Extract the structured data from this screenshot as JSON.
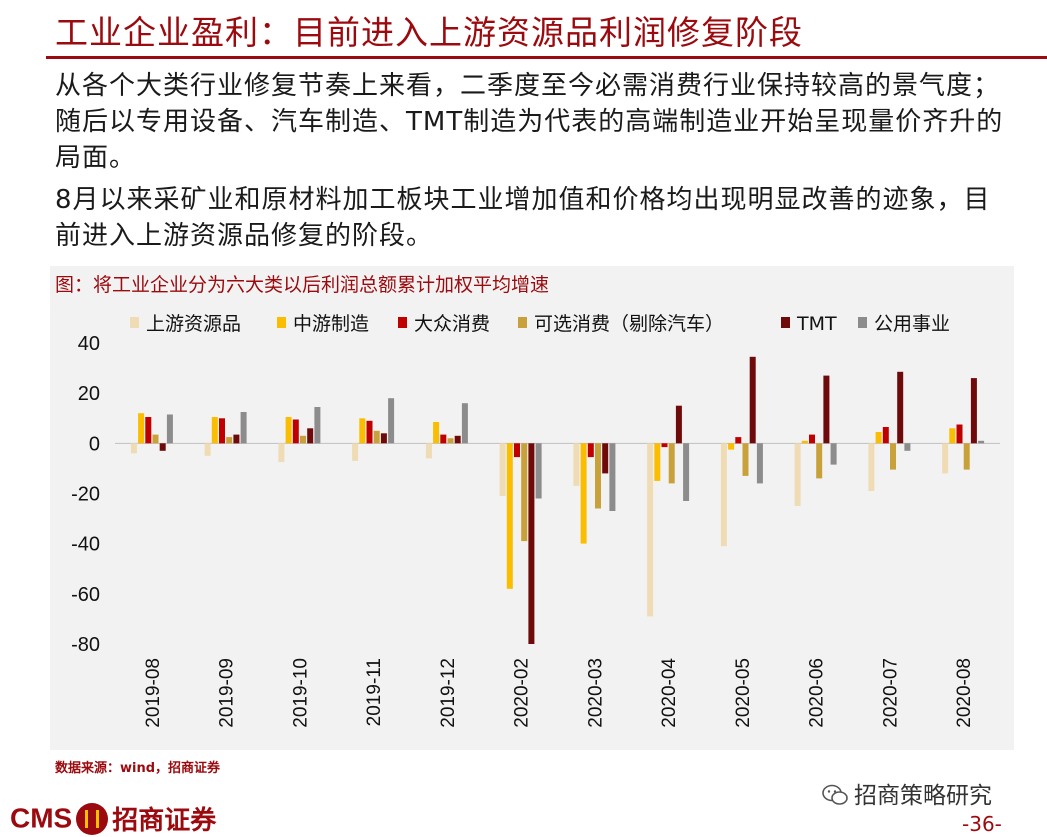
{
  "header": {
    "title": "工业企业盈利：目前进入上游资源品利润修复阶段"
  },
  "body": {
    "paragraph1": "从各个大类行业修复节奏上来看，二季度至今必需消费行业保持较高的景气度；随后以专用设备、汽车制造、TMT制造为代表的高端制造业开始呈现量价齐升的局面。",
    "paragraph2": "8月以来采矿业和原材料加工板块工业增加值和价格均出现明显改善的迹象，目前进入上游资源品修复的阶段。"
  },
  "chart_data": {
    "type": "bar",
    "title": "图：将工业企业分为六大类以后利润总额累计加权平均增速",
    "categories": [
      "2019-08",
      "2019-09",
      "2019-10",
      "2019-11",
      "2019-12",
      "2020-02",
      "2020-03",
      "2020-04",
      "2020-05",
      "2020-06",
      "2020-07",
      "2020-08"
    ],
    "ylim": [
      -80,
      40
    ],
    "yticks": [
      40,
      20,
      0,
      -20,
      -40,
      -60,
      -80
    ],
    "legend_position": "top",
    "series": [
      {
        "name": "上游资源品",
        "color": "#efdcb4",
        "values": [
          -4,
          -5,
          -7.5,
          -7,
          -6,
          -21,
          -17,
          -69,
          -41,
          -25,
          -19,
          -12
        ]
      },
      {
        "name": "中游制造",
        "color": "#fbbd00",
        "values": [
          12,
          10.5,
          10.5,
          10,
          8.5,
          -58,
          -40,
          -15,
          -2.5,
          1,
          4.5,
          6
        ]
      },
      {
        "name": "大众消费",
        "color": "#c00000",
        "values": [
          10.5,
          10,
          9.5,
          9,
          3.5,
          -5.5,
          -5.5,
          -1.5,
          2.5,
          3.5,
          6.5,
          7.5
        ]
      },
      {
        "name": "可选消费（剔除汽车）",
        "color": "#c9a13a",
        "values": [
          3.5,
          2.5,
          3,
          5,
          2,
          -39,
          -26,
          -16,
          -13,
          -14,
          -10.5,
          -10.5
        ]
      },
      {
        "name": "TMT",
        "color": "#6e0a0a",
        "values": [
          -3,
          3.5,
          6,
          4,
          3,
          -80,
          -12,
          15,
          34.5,
          27,
          28.5,
          26
        ]
      },
      {
        "name": "公用事业",
        "color": "#8c8c8c",
        "values": [
          11.5,
          12.5,
          14.5,
          18,
          16,
          -22,
          -27,
          -23,
          -16,
          -8.5,
          -3,
          1
        ]
      }
    ]
  },
  "footer": {
    "source": "数据来源：wind，招商证券",
    "wechat_label": "招商策略研究",
    "logo_text_latin": "CMS",
    "logo_text_cn": "招商证券",
    "page_number": "-36-",
    "wechat_icon": "wechat-icon",
    "logo_seal_icon": "cms-seal-icon"
  }
}
